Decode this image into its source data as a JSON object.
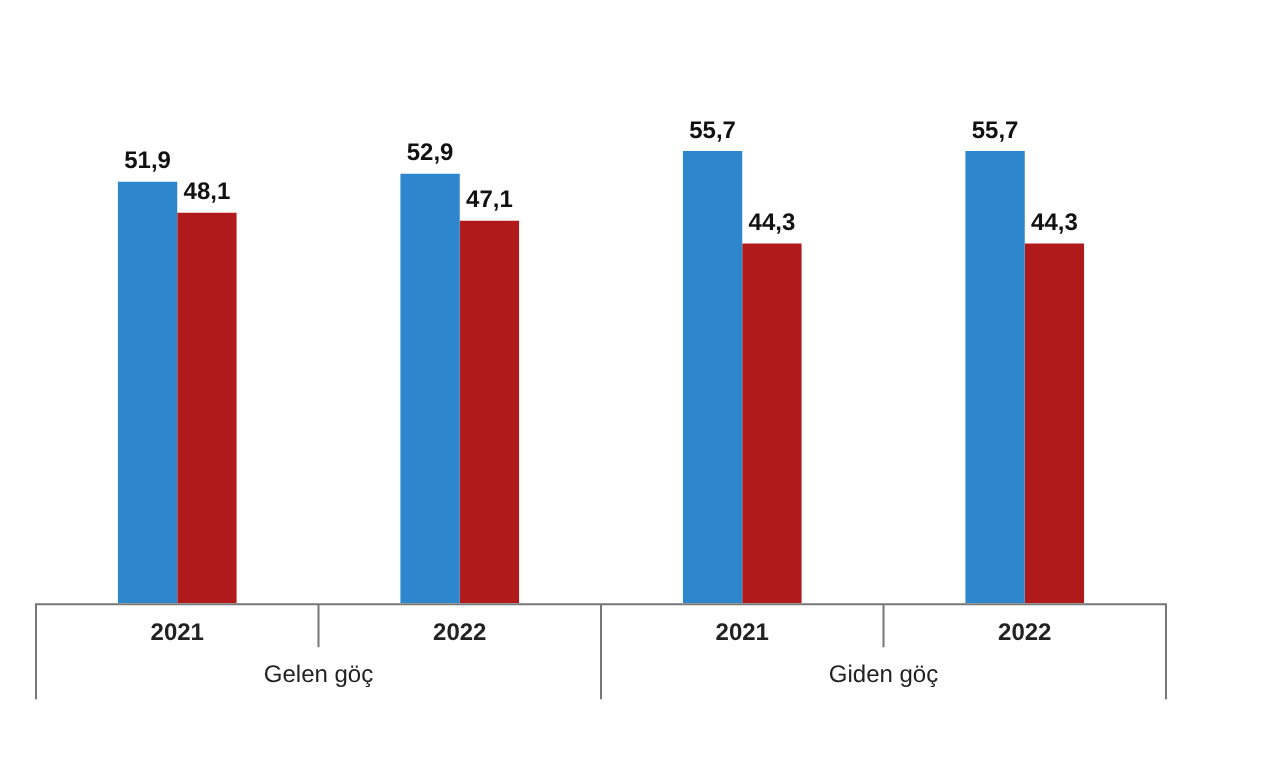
{
  "chart_data": {
    "type": "bar",
    "categories": [
      "2021",
      "2022",
      "2021",
      "2022"
    ],
    "series": [
      {
        "color": "#2e86cc",
        "values": [
          51.9,
          52.9,
          55.7,
          55.7
        ],
        "value_labels": [
          "51,9",
          "52,9",
          "55,7",
          "55,7"
        ]
      },
      {
        "color": "#b01a1a",
        "values": [
          48.1,
          47.1,
          44.3,
          44.3
        ],
        "value_labels": [
          "48,1",
          "47,1",
          "44,3",
          "44,3"
        ]
      }
    ],
    "annotations": [
      "Gelen göç",
      "Giden göç"
    ],
    "legend": false,
    "grid": false
  }
}
